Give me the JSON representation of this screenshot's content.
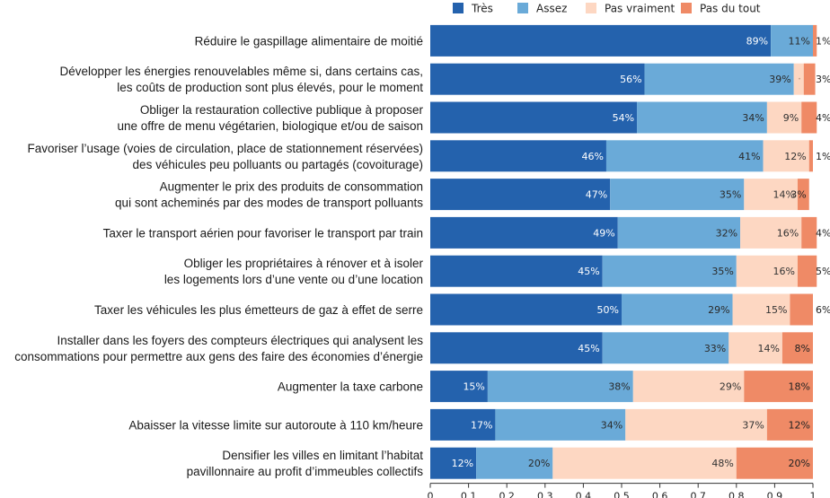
{
  "chart_data": {
    "type": "bar",
    "orientation": "horizontal",
    "stacked": true,
    "xlim": [
      0,
      1
    ],
    "xticks": [
      "0",
      "0.1",
      "0.2",
      "0.3",
      "0.4",
      "0.5",
      "0.6",
      "0.7",
      "0.8",
      "0.9",
      "1"
    ],
    "legend_position": "top",
    "grid": false,
    "categories": [
      [
        "Réduire le gaspillage alimentaire de moitié"
      ],
      [
        "Développer les énergies renouvelables même si, dans certains cas,",
        "les coûts de production sont plus élevés, pour le moment"
      ],
      [
        "Obliger la restauration collective publique à proposer",
        "une offre de menu végétarien, biologique et/ou de saison"
      ],
      [
        "Favoriser l’usage (voies de circulation, place de stationnement réservées)",
        "des véhicules peu polluants ou partagés (covoiturage)"
      ],
      [
        "Augmenter le prix des produits de consommation",
        "qui sont acheminés par des modes de transport polluants"
      ],
      [
        "Taxer le transport aérien pour favoriser le transport par train"
      ],
      [
        "Obliger les propriétaires à rénover et à isoler",
        "les logements lors d’une vente ou d’une location"
      ],
      [
        "Taxer les véhicules les plus émetteurs de gaz à effet de serre"
      ],
      [
        "Installer dans les foyers des compteurs électriques qui analysent les",
        "consommations pour permettre aux gens des faire des économies d’énergie"
      ],
      [
        "Augmenter la taxe carbone"
      ],
      [
        "Abaisser la vitesse limite sur autoroute à 110 km/heure"
      ],
      [
        "Densifier les villes en limitant l’habitat",
        "pavillonnaire au profit d’immeubles collectifs"
      ]
    ],
    "series": [
      {
        "name": "Très",
        "color": "#2462ad",
        "label_color": "#ffffff",
        "values": [
          0.89,
          0.56,
          0.54,
          0.46,
          0.47,
          0.49,
          0.45,
          0.5,
          0.45,
          0.15,
          0.17,
          0.12
        ],
        "labels": [
          "89%",
          "56%",
          "54%",
          "46%",
          "47%",
          "49%",
          "45%",
          "50%",
          "45%",
          "15%",
          "17%",
          "12%"
        ]
      },
      {
        "name": "Assez",
        "color": "#6aaad8",
        "label_color": "#2a2a2a",
        "values": [
          0.11,
          0.39,
          0.34,
          0.41,
          0.35,
          0.32,
          0.35,
          0.29,
          0.33,
          0.38,
          0.34,
          0.2
        ],
        "labels": [
          "11%",
          "39%",
          "34%",
          "41%",
          "35%",
          "32%",
          "35%",
          "29%",
          "33%",
          "38%",
          "34%",
          "20%"
        ]
      },
      {
        "name": "Pas vraiment",
        "color": "#fdd7c2",
        "label_color": "#333333",
        "values": [
          0.0,
          0.026,
          0.09,
          0.12,
          0.14,
          0.16,
          0.16,
          0.15,
          0.14,
          0.29,
          0.37,
          0.48
        ],
        "labels": [
          "",
          "",
          "9%",
          "12%",
          "14%",
          "16%",
          "16%",
          "15%",
          "14%",
          "29%",
          "37%",
          "48%"
        ]
      },
      {
        "name": "Pas du tout",
        "color": "#ef8a66",
        "label_color": "#222222",
        "values": [
          0.01,
          0.03,
          0.04,
          0.01,
          0.03,
          0.04,
          0.05,
          0.06,
          0.08,
          0.18,
          0.12,
          0.2
        ],
        "labels": [
          "1%",
          "3%",
          "4%",
          "1%",
          "3%",
          "4%",
          "5%",
          "6%",
          "8%",
          "18%",
          "12%",
          "20%"
        ]
      }
    ]
  }
}
